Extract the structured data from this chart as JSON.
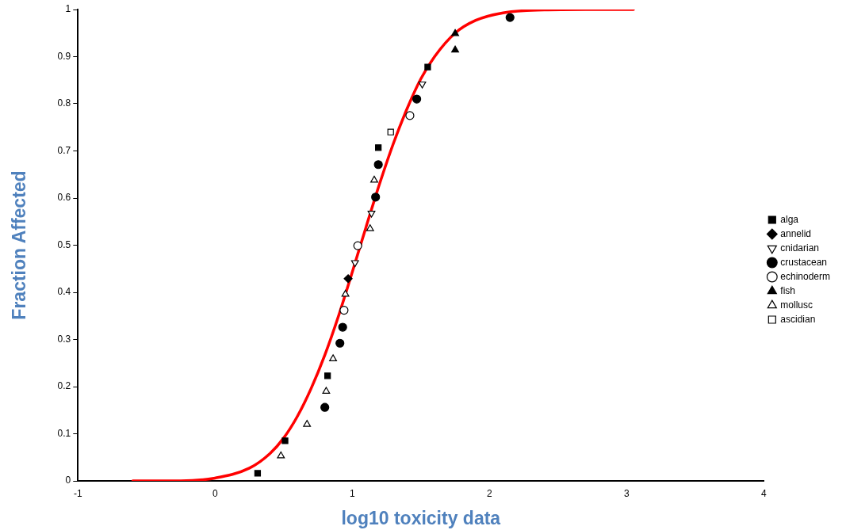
{
  "chart_data": {
    "type": "scatter",
    "xlabel": "log10 toxicity data",
    "ylabel": "Fraction Affected",
    "xlim": [
      -1,
      4
    ],
    "xticks": [
      -1,
      0,
      1,
      2,
      3,
      4
    ],
    "ylim": [
      0,
      1
    ],
    "yticks": [
      0,
      0.1,
      0.2,
      0.3,
      0.4,
      0.5,
      0.6,
      0.7,
      0.8,
      0.9,
      1
    ],
    "grid": false,
    "legend": "right",
    "series": [
      {
        "name": "alga",
        "color": "#000000",
        "marker": "square",
        "x": [
          0.31,
          0.51,
          0.82,
          1.19,
          1.55
        ],
        "values": [
          0.016,
          0.085,
          0.223,
          0.707,
          0.878
        ]
      },
      {
        "name": "annelid",
        "color": "#000000",
        "marker": "diamond",
        "x": [
          0.97
        ],
        "values": [
          0.429
        ]
      },
      {
        "name": "cnidarian",
        "color": "#000000",
        "marker": "triangle-down-open",
        "x": [
          1.02,
          1.14,
          1.51
        ],
        "values": [
          0.463,
          0.568,
          0.842
        ]
      },
      {
        "name": "crustacean",
        "color": "#000000",
        "marker": "circle",
        "x": [
          0.8,
          0.91,
          0.93,
          1.17,
          1.19,
          1.47,
          2.15
        ],
        "values": [
          0.156,
          0.292,
          0.326,
          0.602,
          0.671,
          0.81,
          0.983
        ]
      },
      {
        "name": "echinoderm",
        "color": "#000000",
        "marker": "circle-open",
        "x": [
          0.94,
          1.04,
          1.42
        ],
        "values": [
          0.362,
          0.499,
          0.775
        ]
      },
      {
        "name": "fish",
        "color": "#000000",
        "marker": "triangle",
        "x": [
          1.75,
          1.75
        ],
        "values": [
          0.914,
          0.949
        ]
      },
      {
        "name": "mollusc",
        "color": "#000000",
        "marker": "triangle-open",
        "x": [
          0.48,
          0.67,
          0.81,
          0.86,
          0.95,
          1.13,
          1.16
        ],
        "values": [
          0.053,
          0.12,
          0.19,
          0.259,
          0.396,
          0.535,
          0.638
        ]
      },
      {
        "name": "ascidian",
        "color": "#000000",
        "marker": "square-open",
        "x": [
          1.28
        ],
        "values": [
          0.74
        ]
      },
      {
        "type": "line",
        "color": "#ff0000",
        "marker": "none",
        "line_style": "solid",
        "x": [
          -0.6,
          -0.25,
          0,
          0.25,
          0.4,
          0.5,
          0.6,
          0.7,
          0.8,
          0.9,
          1.0,
          1.06,
          1.1,
          1.2,
          1.3,
          1.4,
          1.5,
          1.6,
          1.75,
          1.9,
          2.1,
          2.4,
          2.7,
          3.05
        ],
        "values": [
          0,
          0,
          0.006,
          0.027,
          0.058,
          0.091,
          0.137,
          0.196,
          0.267,
          0.35,
          0.443,
          0.5,
          0.538,
          0.631,
          0.716,
          0.79,
          0.853,
          0.9,
          0.95,
          0.977,
          0.993,
          0.999,
          1,
          1
        ]
      }
    ]
  }
}
